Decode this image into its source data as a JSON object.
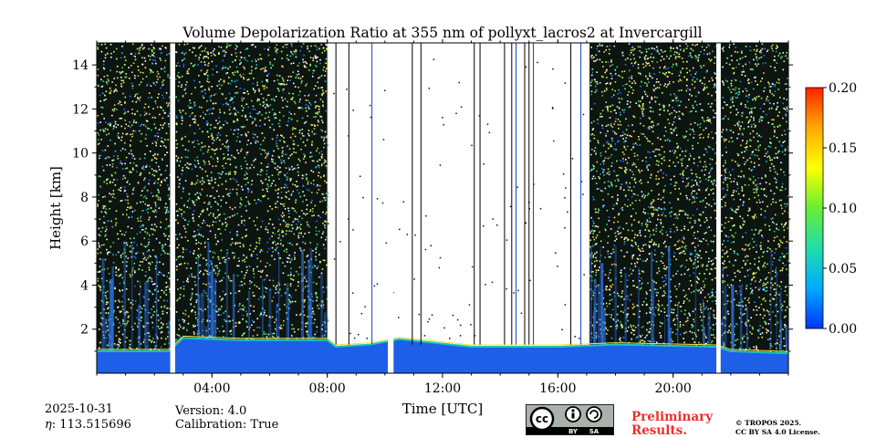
{
  "chart_data": {
    "type": "heatmap",
    "title": "Volume Depolarization Ratio at 355 nm of pollyxt_lacros2 at Invercargill",
    "xlabel": "Time [UTC]",
    "ylabel": "Height [km]",
    "xlim_hours": [
      0,
      24
    ],
    "ylim_km": [
      0,
      15
    ],
    "x_ticks": [
      {
        "value": 4,
        "label": "04:00"
      },
      {
        "value": 8,
        "label": "08:00"
      },
      {
        "value": 12,
        "label": "12:00"
      },
      {
        "value": 16,
        "label": "16:00"
      },
      {
        "value": 20,
        "label": "20:00"
      }
    ],
    "y_ticks": [
      {
        "value": 2,
        "label": "2"
      },
      {
        "value": 4,
        "label": "4"
      },
      {
        "value": 6,
        "label": "6"
      },
      {
        "value": 8,
        "label": "8"
      },
      {
        "value": 10,
        "label": "10"
      },
      {
        "value": 12,
        "label": "12"
      },
      {
        "value": 14,
        "label": "14"
      }
    ],
    "colorbar": {
      "min": 0.0,
      "max": 0.2,
      "ticks": [
        {
          "value": 0.0,
          "label": "0.00"
        },
        {
          "value": 0.05,
          "label": "0.05"
        },
        {
          "value": 0.1,
          "label": "0.10"
        },
        {
          "value": 0.15,
          "label": "0.15"
        },
        {
          "value": 0.2,
          "label": "0.20"
        }
      ],
      "colors": [
        "#0033ff",
        "#00aaff",
        "#22ddaa",
        "#66ee33",
        "#ffff00",
        "#ffaa00",
        "#ff2200"
      ]
    },
    "noise_segments_hours": [
      [
        0,
        2.55
      ],
      [
        2.72,
        8.0
      ],
      [
        17.1,
        21.5
      ],
      [
        21.65,
        24
      ]
    ],
    "data_gaps_hours": [
      [
        2.55,
        2.72
      ],
      [
        10.1,
        10.3
      ],
      [
        21.5,
        21.65
      ]
    ],
    "boundary_layer_top_km": [
      {
        "t": 0,
        "h": 1.0
      },
      {
        "t": 2.5,
        "h": 1.0
      },
      {
        "t": 3.0,
        "h": 1.6
      },
      {
        "t": 5.0,
        "h": 1.5
      },
      {
        "t": 8.0,
        "h": 1.5
      },
      {
        "t": 8.3,
        "h": 1.2
      },
      {
        "t": 9.5,
        "h": 1.3
      },
      {
        "t": 10.5,
        "h": 1.55
      },
      {
        "t": 13.0,
        "h": 1.2
      },
      {
        "t": 16.0,
        "h": 1.2
      },
      {
        "t": 18.0,
        "h": 1.3
      },
      {
        "t": 21.5,
        "h": 1.2
      },
      {
        "t": 22.0,
        "h": 1.0
      },
      {
        "t": 24.0,
        "h": 0.9
      }
    ],
    "vertical_lines_hours": [
      {
        "t": 8.3,
        "color": "#000000"
      },
      {
        "t": 8.75,
        "color": "#000000"
      },
      {
        "t": 9.55,
        "color": "#1144cc"
      },
      {
        "t": 10.95,
        "color": "#000000"
      },
      {
        "t": 11.25,
        "color": "#000000"
      },
      {
        "t": 13.1,
        "color": "#000000"
      },
      {
        "t": 13.3,
        "color": "#000000"
      },
      {
        "t": 14.15,
        "color": "#000000"
      },
      {
        "t": 14.4,
        "color": "#000000"
      },
      {
        "t": 14.55,
        "color": "#1144cc"
      },
      {
        "t": 14.85,
        "color": "#000000"
      },
      {
        "t": 15.0,
        "color": "#000000"
      },
      {
        "t": 15.15,
        "color": "#1144cc"
      },
      {
        "t": 16.45,
        "color": "#000000"
      },
      {
        "t": 16.8,
        "color": "#1144cc"
      }
    ]
  },
  "meta": {
    "date": "2025-10-31",
    "eta_label": "η",
    "eta_value": ": 113.515696",
    "version": "Version: 4.0",
    "calibration": "Calibration: True",
    "preliminary_line1": "Preliminary",
    "preliminary_line2": "Results.",
    "copyright_line1": "© TROPOS 2025.",
    "copyright_line2": "CC BY SA 4.0 License.",
    "cc_badge": {
      "by": "BY",
      "sa": "SA",
      "cc": "cc"
    }
  }
}
